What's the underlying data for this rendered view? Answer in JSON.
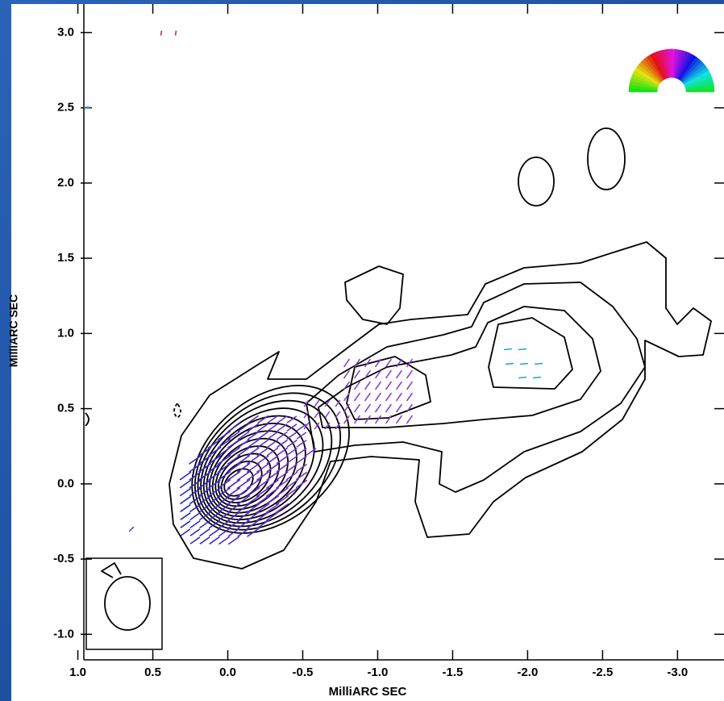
{
  "chart_data": {
    "type": "contour",
    "xlabel": "MilliARC SEC",
    "ylabel": "MilliARC SEC",
    "xlim": [
      0.96,
      -3.31
    ],
    "ylim": [
      -1.17,
      3.19
    ],
    "xticks": [
      {
        "value": 1,
        "label": "1.0"
      },
      {
        "value": 0.5,
        "label": "0.5"
      },
      {
        "value": 0,
        "label": "0.0"
      },
      {
        "value": -0.5,
        "label": "-0.5"
      },
      {
        "value": -1,
        "label": "-1.0"
      },
      {
        "value": -1.5,
        "label": "-1.5"
      },
      {
        "value": -2,
        "label": "-2.0"
      },
      {
        "value": -2.5,
        "label": "-2.5"
      },
      {
        "value": -3,
        "label": "-3.0"
      }
    ],
    "yticks": [
      {
        "value": 3,
        "label": "3.0"
      },
      {
        "value": 2.5,
        "label": "2.5"
      },
      {
        "value": 2,
        "label": "2.0"
      },
      {
        "value": 1.5,
        "label": "1.5"
      },
      {
        "value": 1,
        "label": "1.0"
      },
      {
        "value": 0.5,
        "label": "0.5"
      },
      {
        "value": 0,
        "label": "0.0"
      },
      {
        "value": -0.5,
        "label": "-0.5"
      },
      {
        "value": -1,
        "label": "-1.0"
      }
    ]
  }
}
